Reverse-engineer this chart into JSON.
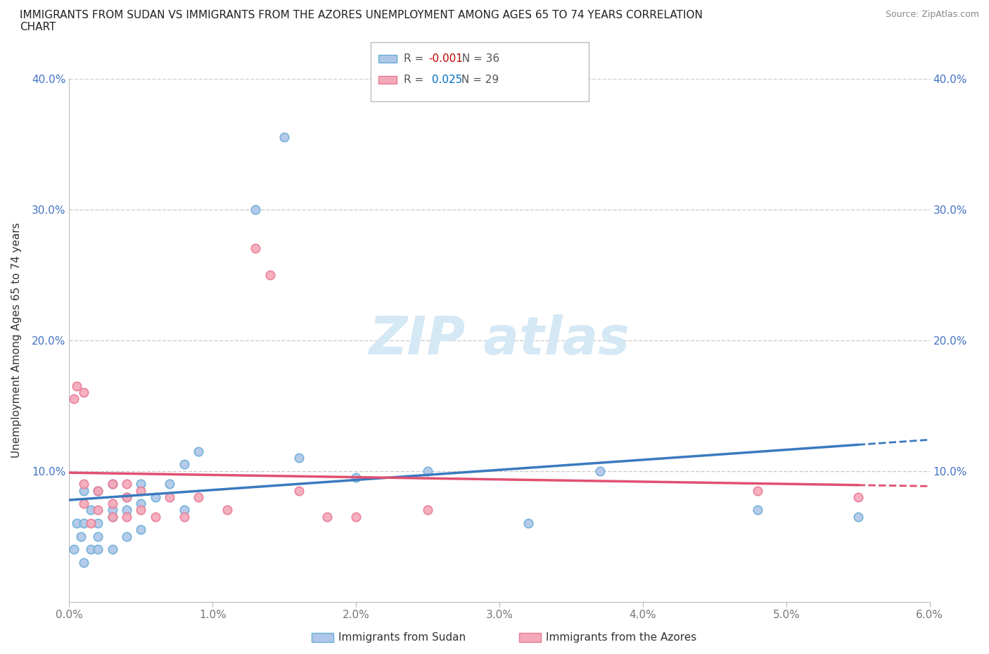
{
  "title": "IMMIGRANTS FROM SUDAN VS IMMIGRANTS FROM THE AZORES UNEMPLOYMENT AMONG AGES 65 TO 74 YEARS CORRELATION\nCHART",
  "source": "Source: ZipAtlas.com",
  "ylabel": "Unemployment Among Ages 65 to 74 years",
  "xlim": [
    0.0,
    0.06
  ],
  "ylim": [
    0.0,
    0.4
  ],
  "xticks": [
    0.0,
    0.01,
    0.02,
    0.03,
    0.04,
    0.05,
    0.06
  ],
  "yticks": [
    0.0,
    0.1,
    0.2,
    0.3,
    0.4
  ],
  "sudan_color": "#aec6e8",
  "azores_color": "#f4a8b8",
  "sudan_edge": "#6aaed6",
  "azores_edge": "#e87a96",
  "sudan_trendline_color": "#3a7abf",
  "azores_trendline_color": "#e05070",
  "watermark_color": "#d5e8f5",
  "sudan_R": -0.001,
  "sudan_N": 36,
  "azores_R": 0.025,
  "azores_N": 29,
  "sudan_x": [
    0.0003,
    0.0005,
    0.0008,
    0.001,
    0.001,
    0.001,
    0.0015,
    0.0015,
    0.002,
    0.002,
    0.002,
    0.002,
    0.003,
    0.003,
    0.003,
    0.003,
    0.004,
    0.004,
    0.004,
    0.005,
    0.005,
    0.005,
    0.006,
    0.007,
    0.008,
    0.008,
    0.009,
    0.013,
    0.015,
    0.016,
    0.02,
    0.025,
    0.032,
    0.037,
    0.048,
    0.055
  ],
  "sudan_y": [
    0.04,
    0.06,
    0.05,
    0.03,
    0.06,
    0.085,
    0.04,
    0.07,
    0.04,
    0.06,
    0.085,
    0.05,
    0.04,
    0.065,
    0.09,
    0.07,
    0.05,
    0.07,
    0.08,
    0.055,
    0.075,
    0.09,
    0.08,
    0.09,
    0.07,
    0.105,
    0.115,
    0.3,
    0.355,
    0.11,
    0.095,
    0.1,
    0.06,
    0.1,
    0.07,
    0.065
  ],
  "azores_x": [
    0.0003,
    0.0005,
    0.001,
    0.001,
    0.001,
    0.0015,
    0.002,
    0.002,
    0.003,
    0.003,
    0.003,
    0.004,
    0.004,
    0.004,
    0.005,
    0.005,
    0.006,
    0.007,
    0.008,
    0.009,
    0.011,
    0.013,
    0.014,
    0.016,
    0.018,
    0.02,
    0.025,
    0.048,
    0.055
  ],
  "azores_y": [
    0.155,
    0.165,
    0.075,
    0.09,
    0.16,
    0.06,
    0.07,
    0.085,
    0.065,
    0.09,
    0.075,
    0.065,
    0.09,
    0.08,
    0.07,
    0.085,
    0.065,
    0.08,
    0.065,
    0.08,
    0.07,
    0.27,
    0.25,
    0.085,
    0.065,
    0.065,
    0.07,
    0.085,
    0.08
  ],
  "background_color": "#ffffff",
  "grid_color": "#cccccc",
  "spine_color": "#bbbbbb",
  "tick_color": "#777777",
  "title_color": "#222222",
  "source_color": "#888888",
  "label_color": "#333333",
  "yaxis_tick_color": "#4472c4",
  "legend_R_color_sudan": "#c00000",
  "legend_R_color_azores": "#0070c0"
}
